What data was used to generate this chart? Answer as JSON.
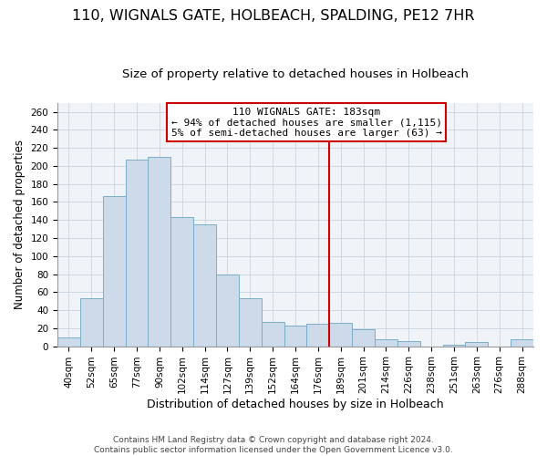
{
  "title": "110, WIGNALS GATE, HOLBEACH, SPALDING, PE12 7HR",
  "subtitle": "Size of property relative to detached houses in Holbeach",
  "xlabel": "Distribution of detached houses by size in Holbeach",
  "ylabel": "Number of detached properties",
  "footer_line1": "Contains HM Land Registry data © Crown copyright and database right 2024.",
  "footer_line2": "Contains public sector information licensed under the Open Government Licence v3.0.",
  "bar_labels": [
    "40sqm",
    "52sqm",
    "65sqm",
    "77sqm",
    "90sqm",
    "102sqm",
    "114sqm",
    "127sqm",
    "139sqm",
    "152sqm",
    "164sqm",
    "176sqm",
    "189sqm",
    "201sqm",
    "214sqm",
    "226sqm",
    "238sqm",
    "251sqm",
    "263sqm",
    "276sqm",
    "288sqm"
  ],
  "bar_heights": [
    10,
    53,
    167,
    207,
    210,
    143,
    135,
    80,
    53,
    27,
    23,
    25,
    26,
    19,
    8,
    6,
    0,
    2,
    5,
    0,
    8
  ],
  "bar_color": "#ccdaea",
  "bar_edge_color": "#7aaec8",
  "vline_label_idx": 12,
  "vline_color": "#cc0000",
  "annotation_title": "110 WIGNALS GATE: 183sqm",
  "annotation_line1": "← 94% of detached houses are smaller (1,115)",
  "annotation_line2": "5% of semi-detached houses are larger (63) →",
  "annotation_box_color": "#ffffff",
  "annotation_box_edge": "#cc0000",
  "ylim": [
    0,
    270
  ],
  "yticks": [
    0,
    20,
    40,
    60,
    80,
    100,
    120,
    140,
    160,
    180,
    200,
    220,
    240,
    260
  ],
  "title_fontsize": 11.5,
  "subtitle_fontsize": 9.5,
  "xlabel_fontsize": 9,
  "ylabel_fontsize": 8.5,
  "tick_fontsize": 7.5,
  "annotation_fontsize": 8,
  "footer_fontsize": 6.5,
  "bg_color": "#f0f4f8",
  "grid_color": "#c8d4e0"
}
